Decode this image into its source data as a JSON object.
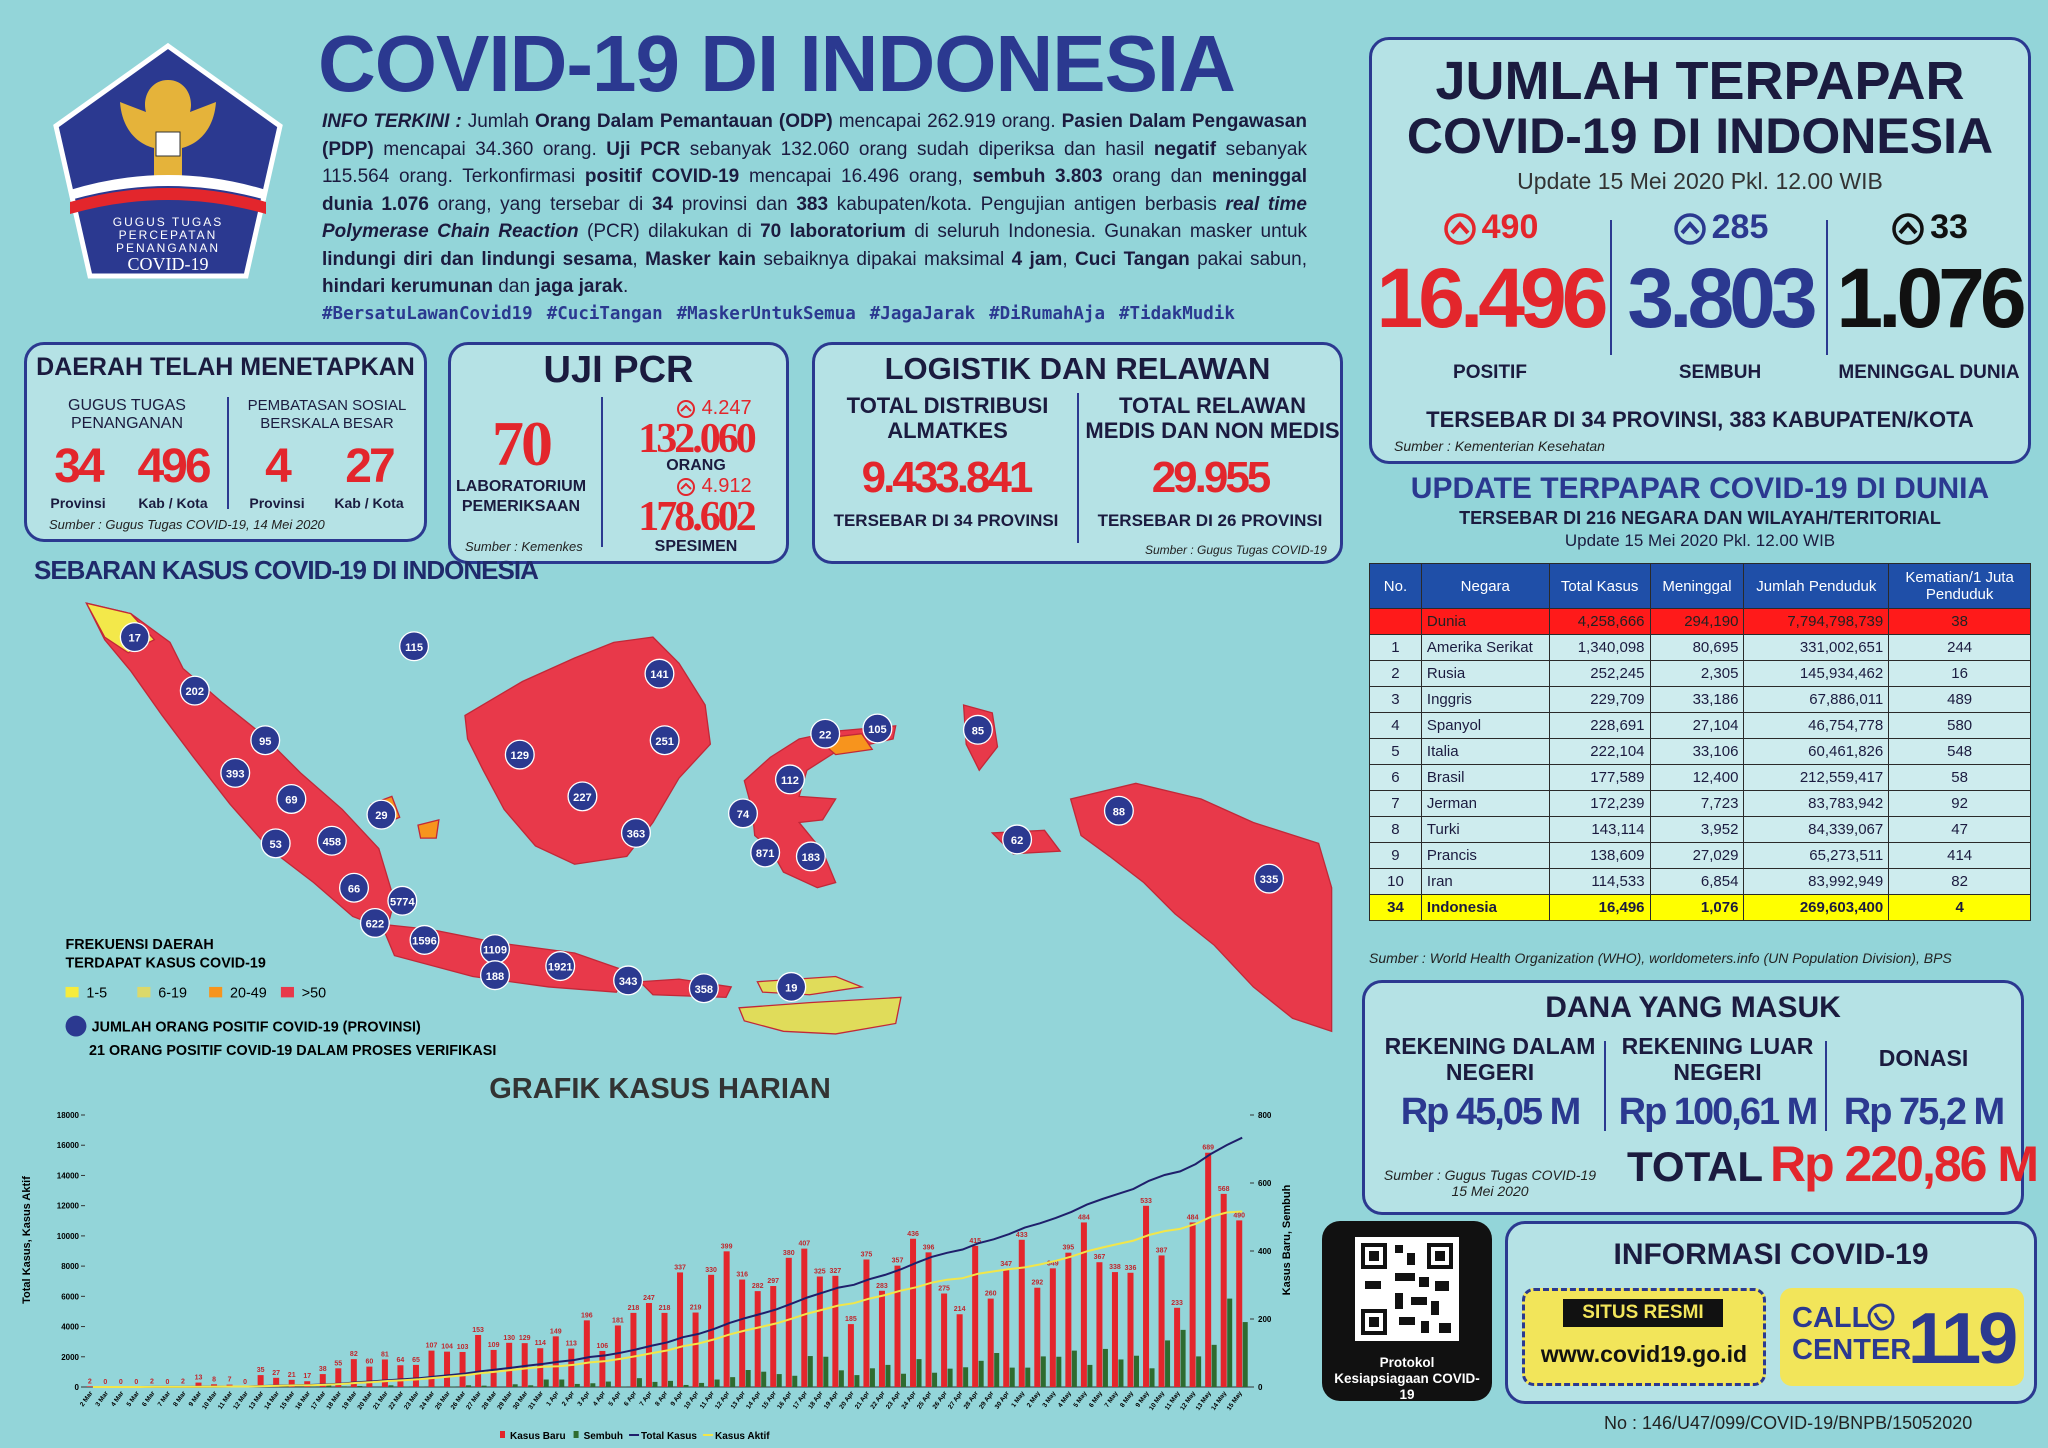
{
  "logo": {
    "lines": [
      "GUGUS TUGAS",
      "PERCEPATAN",
      "PENANGANAN"
    ],
    "covid": "COVID-19"
  },
  "header": {
    "title": "COVID-19 DI INDONESIA"
  },
  "info": {
    "segments": [
      {
        "text": "INFO TERKINI :",
        "style": "bi"
      },
      {
        "text": " Jumlah ",
        "style": "n"
      },
      {
        "text": "Orang Dalam Pemantauan (ODP)",
        "style": "b"
      },
      {
        "text": " mencapai 262.919 orang. ",
        "style": "n"
      },
      {
        "text": "Pasien Dalam Pengawasan (PDP)",
        "style": "b"
      },
      {
        "text": " mencapai 34.360 orang. ",
        "style": "n"
      },
      {
        "text": "Uji PCR",
        "style": "b"
      },
      {
        "text": " sebanyak 132.060 orang sudah diperiksa dan hasil ",
        "style": "n"
      },
      {
        "text": "negatif",
        "style": "b"
      },
      {
        "text": " sebanyak 115.564 orang. Terkonfirmasi ",
        "style": "n"
      },
      {
        "text": "positif COVID-19",
        "style": "b"
      },
      {
        "text": " mencapai 16.496 orang, ",
        "style": "n"
      },
      {
        "text": "sembuh 3.803",
        "style": "b"
      },
      {
        "text": " orang dan ",
        "style": "n"
      },
      {
        "text": "meninggal dunia 1.076",
        "style": "b"
      },
      {
        "text": " orang, yang tersebar di ",
        "style": "n"
      },
      {
        "text": "34",
        "style": "b"
      },
      {
        "text": " provinsi dan ",
        "style": "n"
      },
      {
        "text": "383",
        "style": "b"
      },
      {
        "text": " kabupaten/kota. Pengujian antigen berbasis ",
        "style": "n"
      },
      {
        "text": "real time Polymerase Chain Reaction",
        "style": "bi"
      },
      {
        "text": " (PCR) dilakukan di ",
        "style": "n"
      },
      {
        "text": "70 laboratorium",
        "style": "b"
      },
      {
        "text": " di seluruh Indonesia.  Gunakan masker untuk ",
        "style": "n"
      },
      {
        "text": "lindungi diri dan lindungi sesama",
        "style": "b"
      },
      {
        "text": ", ",
        "style": "n"
      },
      {
        "text": "Masker kain",
        "style": "b"
      },
      {
        "text": " sebaiknya dipakai maksimal ",
        "style": "n"
      },
      {
        "text": "4 jam",
        "style": "b"
      },
      {
        "text": ", ",
        "style": "n"
      },
      {
        "text": "Cuci Tangan",
        "style": "b"
      },
      {
        "text": " pakai sabun, ",
        "style": "n"
      },
      {
        "text": "hindari kerumunan",
        "style": "b"
      },
      {
        "text": " dan ",
        "style": "n"
      },
      {
        "text": "jaga jarak",
        "style": "b"
      },
      {
        "text": ".",
        "style": "n"
      }
    ],
    "hashtags": [
      "#BersatuLawanCovid19",
      "#CuciTangan",
      "#MaskerUntukSemua",
      "#JagaJarak",
      "#DiRumahAja",
      "#TidakMudik"
    ]
  },
  "daerah": {
    "title": "DAERAH TELAH MENETAPKAN",
    "groups": [
      {
        "label": "GUGUS TUGAS PENANGANAN",
        "items": [
          {
            "value": "34",
            "unit": "Provinsi"
          },
          {
            "value": "496",
            "unit": "Kab / Kota"
          }
        ]
      },
      {
        "label": "PEMBATASAN SOSIAL BERSKALA BESAR",
        "items": [
          {
            "value": "4",
            "unit": "Provinsi"
          },
          {
            "value": "27",
            "unit": "Kab / Kota"
          }
        ]
      }
    ],
    "source": "Sumber : Gugus Tugas COVID-19, 14 Mei 2020"
  },
  "pcr": {
    "title": "UJI PCR",
    "labs": "70",
    "labs_label": "LABORATORIUM PEMERIKSAAN",
    "orang_increase": "4.247",
    "orang": "132.060",
    "orang_label": "ORANG",
    "spesimen_increase": "4.912",
    "spesimen": "178.602",
    "spesimen_label": "SPESIMEN",
    "source": "Sumber : Kemenkes"
  },
  "logistik": {
    "title": "LOGISTIK DAN RELAWAN",
    "columns": [
      {
        "label": "TOTAL DISTRIBUSI ALMATKES",
        "value": "9.433.841",
        "note": "TERSEBAR DI 34 PROVINSI"
      },
      {
        "label": "TOTAL RELAWAN MEDIS DAN NON MEDIS",
        "value": "29.955",
        "note": "TERSEBAR DI 26 PROVINSI"
      }
    ],
    "source": "Sumber : Gugus Tugas COVID-19"
  },
  "terpapar": {
    "title": [
      "JUMLAH TERPAPAR",
      "COVID-19 DI INDONESIA"
    ],
    "update": "Update 15 Mei 2020 Pkl. 12.00 WIB",
    "stats": [
      {
        "increase": "490",
        "value": "16.496",
        "label": "POSITIF",
        "color": "#e3262c"
      },
      {
        "increase": "285",
        "value": "3.803",
        "label": "SEMBUH",
        "color": "#2b3990"
      },
      {
        "increase": "33",
        "value": "1.076",
        "label": "MENINGGAL DUNIA",
        "color": "#111111"
      }
    ],
    "spread": "TERSEBAR DI 34 PROVINSI, 383 KABUPATEN/KOTA",
    "source": "Sumber : Kementerian Kesehatan"
  },
  "dunia": {
    "title": "UPDATE TERPAPAR COVID-19 DI DUNIA",
    "subtitle": "TERSEBAR DI 216 NEGARA DAN WILAYAH/TERITORIAL",
    "update": "Update 15 Mei 2020 Pkl. 12.00 WIB",
    "table": {
      "columns": [
        "No.",
        "Negara",
        "Total Kasus",
        "Meninggal",
        "Jumlah Penduduk",
        "Kematian/1 Juta Penduduk"
      ],
      "rows": [
        [
          null,
          "Dunia",
          "4,258,666",
          "294,190",
          "7,794,798,739",
          "38"
        ],
        [
          "1",
          "Amerika Serikat",
          "1,340,098",
          "80,695",
          "331,002,651",
          "244"
        ],
        [
          "2",
          "Rusia",
          "252,245",
          "2,305",
          "145,934,462",
          "16"
        ],
        [
          "3",
          "Inggris",
          "229,709",
          "33,186",
          "67,886,011",
          "489"
        ],
        [
          "4",
          "Spanyol",
          "228,691",
          "27,104",
          "46,754,778",
          "580"
        ],
        [
          "5",
          "Italia",
          "222,104",
          "33,106",
          "60,461,826",
          "548"
        ],
        [
          "6",
          "Brasil",
          "177,589",
          "12,400",
          "212,559,417",
          "58"
        ],
        [
          "7",
          "Jerman",
          "172,239",
          "7,723",
          "83,783,942",
          "92"
        ],
        [
          "8",
          "Turki",
          "143,114",
          "3,952",
          "84,339,067",
          "47"
        ],
        [
          "9",
          "Prancis",
          "138,609",
          "27,029",
          "65,273,511",
          "414"
        ],
        [
          "10",
          "Iran",
          "114,533",
          "6,854",
          "83,992,949",
          "82"
        ],
        [
          "34",
          "Indonesia",
          "16,496",
          "1,076",
          "269,603,400",
          "4"
        ]
      ]
    },
    "source": "Sumber : World Health Organization (WHO), worldometers.info (UN Population Division), BPS"
  },
  "dana": {
    "title": "DANA YANG MASUK",
    "columns": [
      {
        "label": "REKENING DALAM NEGERI",
        "value": "Rp 45,05 M"
      },
      {
        "label": "REKENING LUAR NEGERI",
        "value": "Rp 100,61 M"
      },
      {
        "label": "DONASI",
        "value": "Rp 75,2 M"
      }
    ],
    "source": "Sumber : Gugus Tugas COVID-19 15 Mei 2020",
    "total_label": "TOTAL",
    "total": "Rp 220,86 M"
  },
  "qr": {
    "caption": "Protokol Kesiapsiagaan COVID-19"
  },
  "informasi": {
    "title": "INFORMASI COVID-19",
    "site_label": "SITUS RESMI",
    "site": "www.covid19.go.id",
    "call_label": [
      "CALL",
      "CENTER"
    ],
    "call_number": "119"
  },
  "document": {
    "number": "No : 146/U47/099/COVID-19/BNPB/15052020"
  },
  "map": {
    "title": "SEBARAN KASUS COVID-19 DI INDONESIA",
    "markers": [
      17,
      115,
      202,
      141,
      95,
      129,
      251,
      22,
      105,
      393,
      85,
      69,
      29,
      227,
      112,
      458,
      53,
      363,
      74,
      88,
      871,
      183,
      62,
      66,
      335,
      5774,
      622,
      1596,
      1109,
      1921,
      188,
      343,
      358,
      19
    ],
    "legend_title": [
      "FREKUENSI DAERAH",
      "TERDAPAT KASUS COVID-19"
    ],
    "legend": [
      {
        "label": "1-5",
        "color": "#f7ec3c"
      },
      {
        "label": "6-19",
        "color": "#dcd96a"
      },
      {
        "label": "20-49",
        "color": "#f7941d"
      },
      {
        "label": ">50",
        "color": "#e8394a"
      }
    ],
    "marker_note": "JUMLAH ORANG POSITIF COVID-19 (PROVINSI)",
    "verification_note": "21 ORANG POSITIF COVID-19 DALAM PROSES VERIFIKASI"
  },
  "chart_data": {
    "type": "bar",
    "title": "GRAFIK KASUS HARIAN",
    "y_label": "Total Kasus, Kasus Aktif",
    "y2_label": "Kasus Baru, Sembuh",
    "categories": [
      "2 Mar",
      "3 Mar",
      "4 Mar",
      "5 Mar",
      "6 Mar",
      "7 Mar",
      "8 Mar",
      "9 Mar",
      "10 Mar",
      "11 Mar",
      "12 Mar",
      "13 Mar",
      "14 Mar",
      "15 Mar",
      "16 Mar",
      "17 Mar",
      "18 Mar",
      "19 Mar",
      "20 Mar",
      "21 Mar",
      "22 Mar",
      "23 Mar",
      "24 Mar",
      "25 Mar",
      "26 Mar",
      "27 Mar",
      "28 Mar",
      "29 Mar",
      "30 Mar",
      "31 Mar",
      "1 Apr",
      "2 Apr",
      "3 Apr",
      "4 Apr",
      "5 Apr",
      "6 Apr",
      "7 Apr",
      "8 Apr",
      "9 Apr",
      "10 Apr",
      "11 Apr",
      "12 Apr",
      "13 Apr",
      "14 Apr",
      "15 Apr",
      "16 Apr",
      "17 Apr",
      "18 Apr",
      "19 Apr",
      "20 Apr",
      "21 Apr",
      "22 Apr",
      "23 Apr",
      "24 Apr",
      "25 Apr",
      "26 Apr",
      "27 Apr",
      "28 Apr",
      "29 Apr",
      "30 Apr",
      "1 May",
      "2 May",
      "3 May",
      "4 May",
      "5 May",
      "6 May",
      "7 May",
      "8 May",
      "9 May",
      "10 May",
      "11 May",
      "12 May",
      "13 May",
      "14 May",
      "15 May"
    ],
    "ylim": [
      0,
      18000
    ],
    "yticks": [
      0,
      2000,
      4000,
      6000,
      8000,
      10000,
      12000,
      14000,
      16000,
      18000
    ],
    "y2lim": [
      0,
      800
    ],
    "y2ticks": [
      0,
      200,
      400,
      600,
      800
    ],
    "series": [
      {
        "name": "Kasus Baru",
        "type": "bar",
        "axis": "y2",
        "color": "#e3262c",
        "data_labels": true,
        "values": [
          2,
          0,
          0,
          0,
          2,
          0,
          2,
          13,
          8,
          7,
          0,
          35,
          27,
          21,
          17,
          38,
          55,
          82,
          60,
          81,
          64,
          65,
          107,
          104,
          103,
          153,
          109,
          130,
          129,
          114,
          149,
          113,
          196,
          106,
          181,
          218,
          247,
          218,
          337,
          219,
          330,
          399,
          316,
          282,
          297,
          380,
          407,
          325,
          327,
          185,
          375,
          283,
          357,
          436,
          396,
          275,
          214,
          415,
          260,
          347,
          433,
          292,
          349,
          395,
          484,
          367,
          338,
          336,
          533,
          387,
          233,
          484,
          689,
          568,
          490
        ]
      },
      {
        "name": "Sembuh",
        "type": "bar",
        "axis": "y2",
        "color": "#2e6b2f",
        "data_labels": false,
        "values": [
          0,
          0,
          0,
          0,
          0,
          0,
          0,
          0,
          0,
          0,
          0,
          2,
          0,
          0,
          1,
          6,
          2,
          3,
          0,
          5,
          1,
          1,
          1,
          1,
          5,
          4,
          0,
          8,
          5,
          22,
          22,
          9,
          11,
          16,
          1,
          26,
          15,
          18,
          6,
          12,
          22,
          29,
          50,
          45,
          38,
          33,
          91,
          89,
          49,
          35,
          55,
          65,
          39,
          82,
          42,
          54,
          58,
          77,
          100,
          57,
          57,
          90,
          89,
          107,
          65,
          112,
          81,
          92,
          55,
          137,
          168,
          90,
          124,
          260,
          191
        ]
      },
      {
        "name": "Total Kasus",
        "type": "line",
        "axis": "y",
        "color": "#1f1f6b",
        "values": [
          2,
          2,
          2,
          2,
          4,
          4,
          6,
          19,
          27,
          34,
          34,
          69,
          96,
          117,
          134,
          172,
          227,
          309,
          369,
          450,
          514,
          579,
          686,
          790,
          893,
          1046,
          1155,
          1285,
          1414,
          1528,
          1677,
          1790,
          1986,
          2092,
          2273,
          2491,
          2738,
          2956,
          3293,
          3512,
          3842,
          4241,
          4557,
          4839,
          5136,
          5516,
          5923,
          6248,
          6575,
          6760,
          7135,
          7418,
          7775,
          8211,
          8607,
          8882,
          9096,
          9511,
          9771,
          10118,
          10551,
          10843,
          11192,
          11587,
          12071,
          12438,
          12776,
          13112,
          13645,
          14032,
          14265,
          14749,
          15438,
          16006,
          16496
        ]
      },
      {
        "name": "Kasus Aktif",
        "type": "line",
        "axis": "y",
        "color": "#f2e64a",
        "values": [
          2,
          2,
          2,
          2,
          4,
          4,
          6,
          19,
          27,
          31,
          31,
          62,
          85,
          106,
          120,
          152,
          200,
          272,
          325,
          396,
          452,
          509,
          604,
          695,
          786,
          921,
          1016,
          1131,
          1244,
          1345,
          1375,
          1468,
          1629,
          1715,
          1864,
          2043,
          2245,
          2424,
          2700,
          2880,
          3150,
          3478,
          3737,
          3968,
          4212,
          4523,
          4857,
          5123,
          5392,
          5543,
          5851,
          6083,
          6376,
          6600,
          6900,
          7100,
          7200,
          7500,
          7650,
          7800,
          7913,
          8110,
          8350,
          8630,
          8980,
          9230,
          9460,
          9690,
          10060,
          10320,
          10460,
          10790,
          11270,
          11550,
          11617
        ]
      }
    ]
  }
}
